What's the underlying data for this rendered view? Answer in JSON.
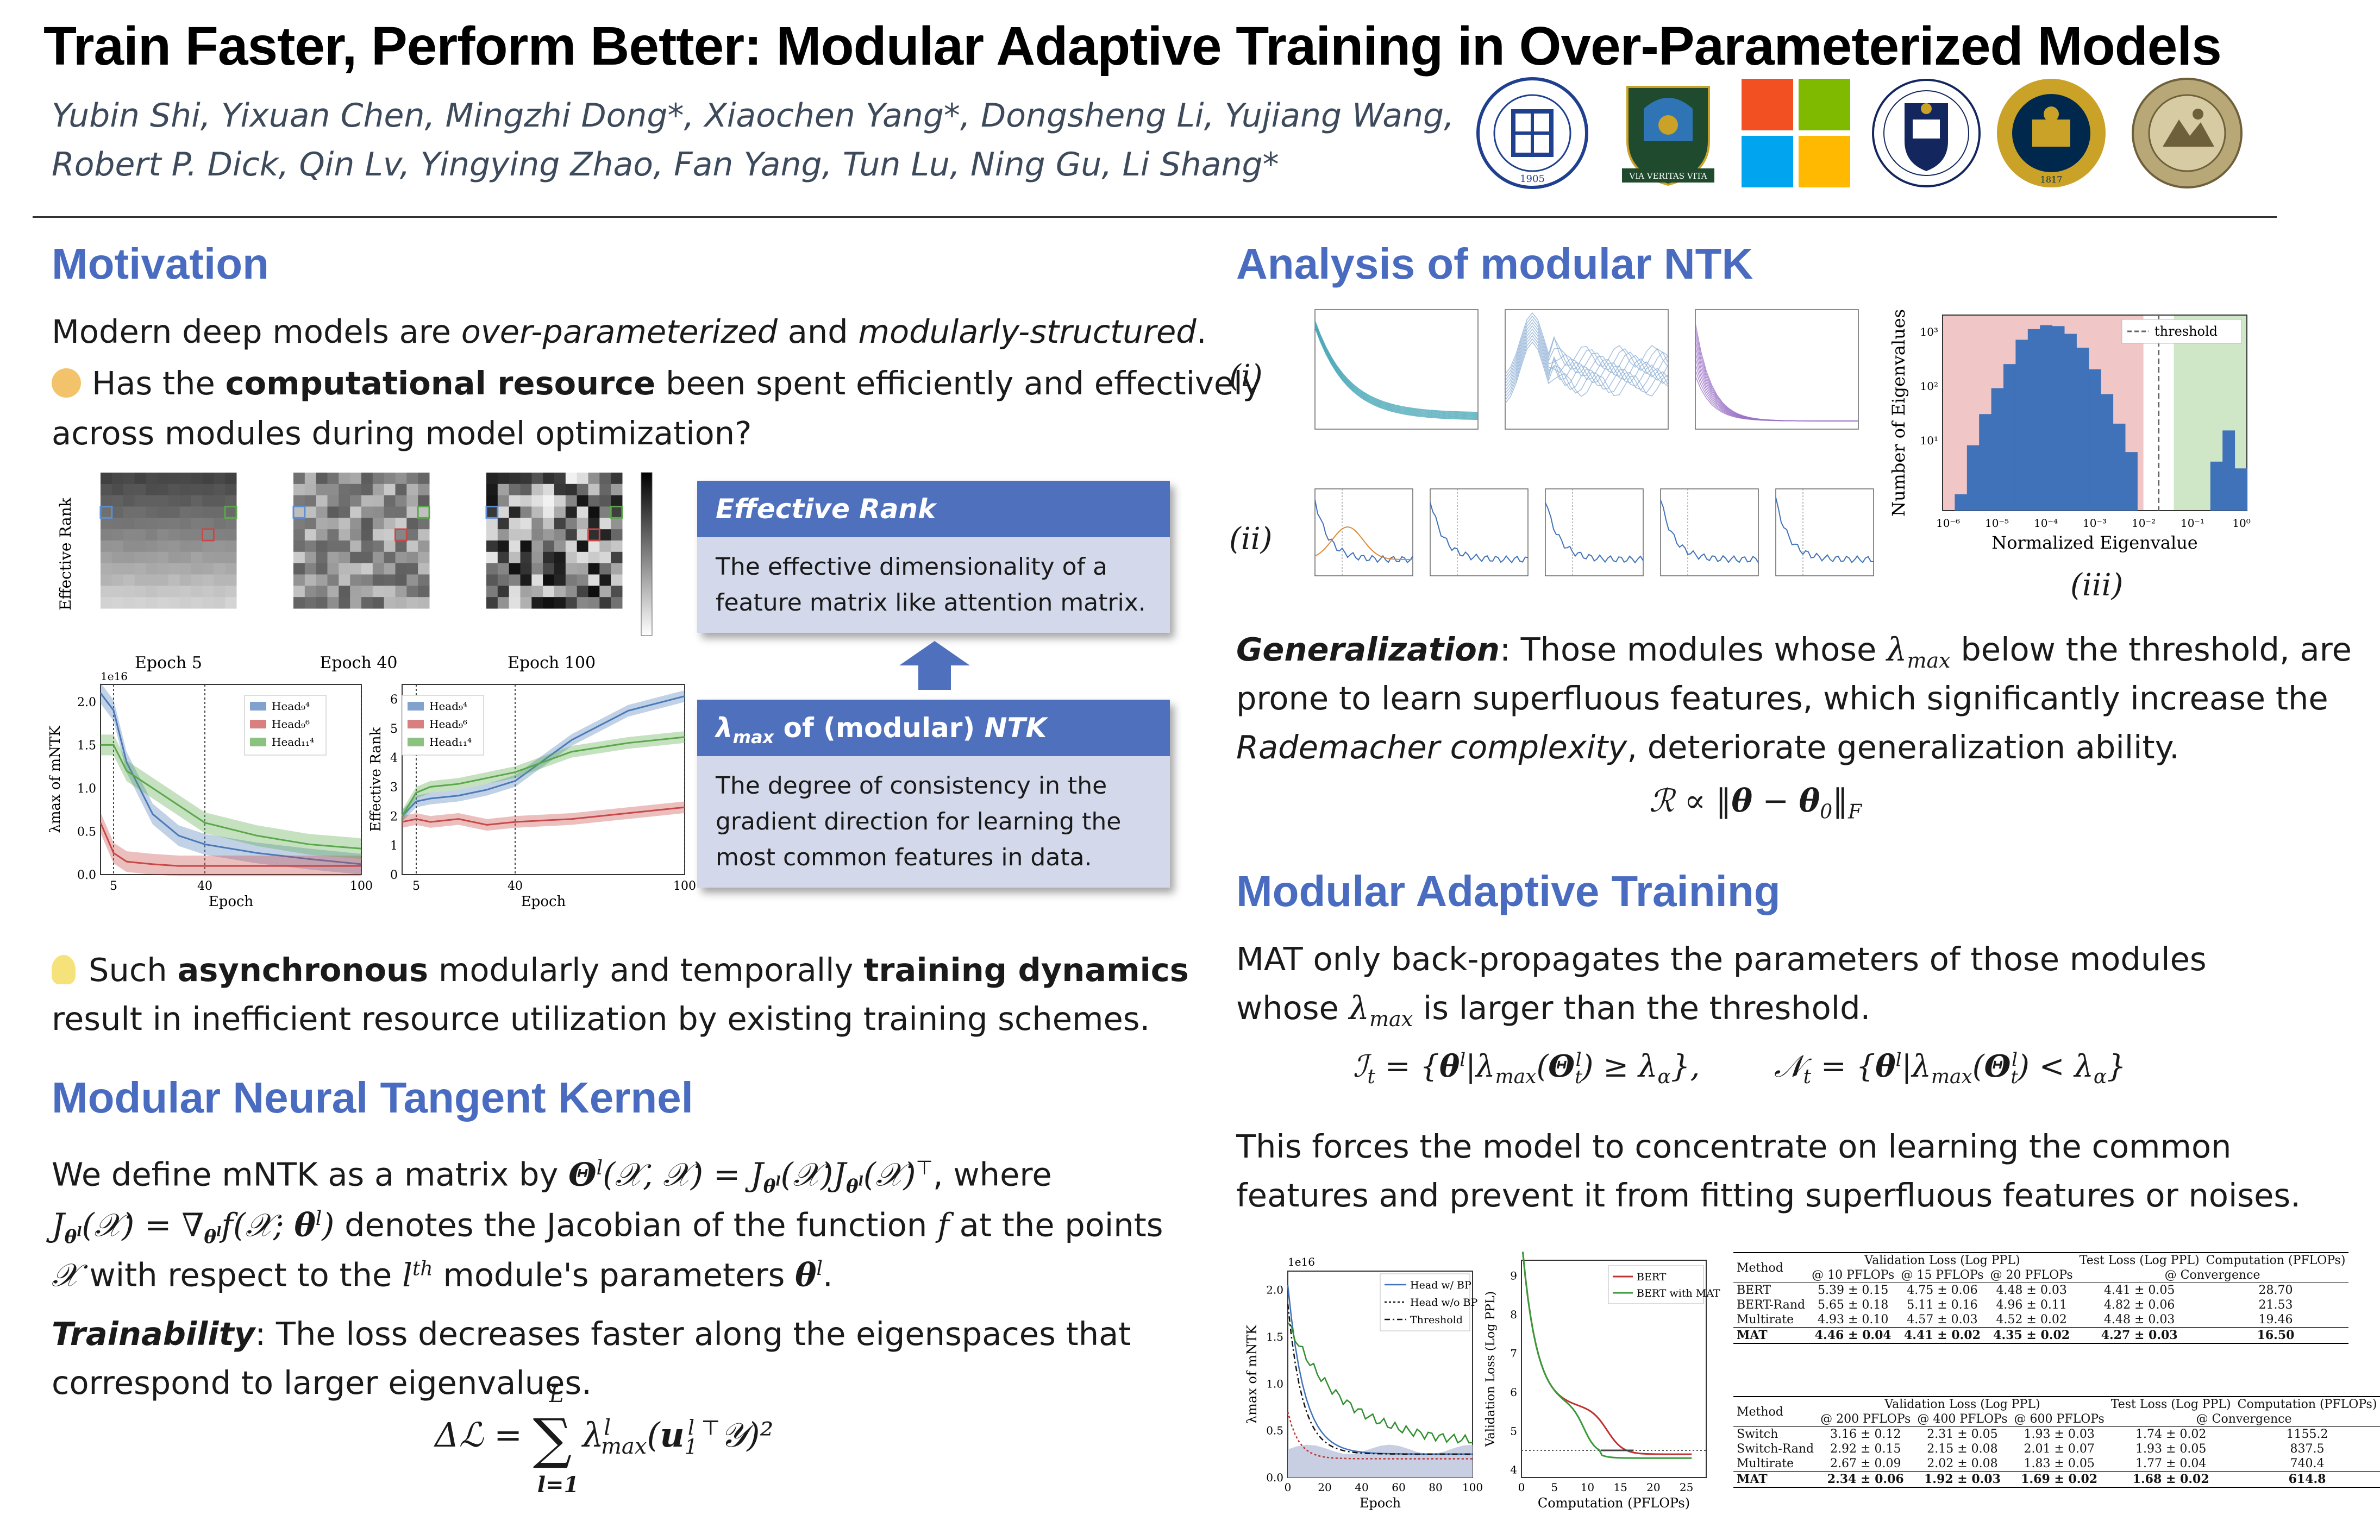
{
  "header": {
    "title": "Train Faster, Perform Better: Modular Adaptive Training in Over-Parameterized Models",
    "authors_line1": "Yubin Shi, Yixuan Chen, Mingzhi Dong*, Xiaochen Yang*, Dongsheng Li, Yujiang Wang,",
    "authors_line2": "Robert P. Dick, Qin Lv, Yingying Zhao, Fan Yang, Tun Lu, Ning Gu, Li Shang*",
    "logos": [
      {
        "name": "fudan-logo",
        "text": "FUDAN UNIVERSITY 1905",
        "color": "#1f3f8f"
      },
      {
        "name": "glasgow-logo",
        "text": "VIA VERITAS VITA",
        "color": "#1f4a2e"
      },
      {
        "name": "microsoft-logo",
        "text": "",
        "color": "#f25022"
      },
      {
        "name": "oxford-logo",
        "text": "",
        "color": "#13265e"
      },
      {
        "name": "michigan-logo",
        "text": "THE UNIVERSITY OF MICHIGAN 1817",
        "color": "#c9a227"
      },
      {
        "name": "colorado-logo",
        "text": "",
        "color": "#8a7a4e"
      }
    ]
  },
  "motivation": {
    "heading": "Motivation",
    "p1_a": "Modern deep models are ",
    "p1_b": "over-parameterized",
    "p1_c": " and ",
    "p1_d": "modularly-structured",
    "p1_e": ".",
    "p2_a": "Has the ",
    "p2_b": "computational resource",
    "p2_c": " been spent efficiently and effectively",
    "p2_d": "across modules during model optimization?",
    "heatmap_ylabel": "Effective Rank",
    "heatmap_labels": [
      "Epoch 5",
      "Epoch 40",
      "Epoch 100"
    ],
    "p3_a": "Such ",
    "p3_b": "asynchronous",
    "p3_c": " modularly and temporally ",
    "p3_d": "training dynamics",
    "p3_e": "result in inefficient resource utilization by existing training schemes."
  },
  "cards": {
    "effective_rank_title": "Effective Rank",
    "effective_rank_body": "The effective dimensionality of a feature matrix like attention matrix.",
    "lambda_title_a": "λ",
    "lambda_title_sub": "max",
    "lambda_title_b": " of (modular) ",
    "lambda_title_c": "NTK",
    "lambda_body": "The degree of consistency in the gradient direction for learning the most common features in data."
  },
  "mntk": {
    "heading": "Modular Neural Tangent Kernel",
    "p1": "We define mNTK as a matrix by Θˡ(𝒳, 𝒳) = J_θˡ(𝒳) J_θˡ(𝒳)ᵀ, where",
    "p2": "J_θˡ(𝒳) = ∇_θˡ f(𝒳; θˡ) denotes the Jacobian of the function f at the points",
    "p3": "𝒳 with respect to the lᵗʰ module's parameters θˡ.",
    "train_label": "Trainability",
    "train_text": ": The loss decreases faster along the eigenspaces that",
    "train_text2": "correspond to larger eigenvalues.",
    "equation": "ΔL = Σ λˡmax (u₁ˡᵀ 𝒴)²"
  },
  "analysis": {
    "heading": "Analysis of modular NTK",
    "roman": [
      "(i)",
      "(ii)",
      "(iii)"
    ],
    "gen_label": "Generalization",
    "gen_text_a": ": Those modules whose ",
    "gen_text_b": " below the threshold, are",
    "gen_text_c": "prone to learn superfluous features, which significantly increase the",
    "gen_text_d": "Rademacher complexity",
    "gen_text_e": ", deteriorate generalization ability.",
    "equation": "ℛ ∝ ‖θ − θ₀‖F"
  },
  "mat": {
    "heading": "Modular Adaptive Training",
    "p1": "MAT only back-propagates the parameters of those modules",
    "p2_a": "whose ",
    "p2_b": " is larger than the threshold.",
    "eq_left": "ℐt = {θˡ | λmax(Θtˡ) ≥ λα},",
    "eq_right": "𝒩t = {θˡ | λmax(Θtˡ) < λα}",
    "p3": "This forces the model to concentrate on learning the common",
    "p4": "features and prevent it from fitting superfluous features or noises."
  },
  "chart_data": [
    {
      "type": "line",
      "title": "",
      "xlabel": "Epoch",
      "ylabel": "λmax of mNTK",
      "scale_label": "1e16",
      "xlim": [
        0,
        100
      ],
      "ylim": [
        0,
        2.2
      ],
      "xticks": [
        "5",
        "40",
        "100"
      ],
      "yticks": [
        "0.0",
        "0.5",
        "1.0",
        "1.5",
        "2.0"
      ],
      "x": [
        0,
        5,
        10,
        20,
        30,
        40,
        60,
        80,
        100
      ],
      "series": [
        {
          "name": "Head₉⁴",
          "color": "#4c7ab8",
          "values": [
            2.1,
            1.9,
            1.3,
            0.7,
            0.45,
            0.35,
            0.25,
            0.18,
            0.12
          ]
        },
        {
          "name": "Head₉⁶",
          "color": "#c84848",
          "values": [
            0.6,
            0.25,
            0.15,
            0.12,
            0.1,
            0.1,
            0.1,
            0.1,
            0.1
          ]
        },
        {
          "name": "Head₁₁⁴",
          "color": "#5aa84a",
          "values": [
            1.5,
            1.5,
            1.2,
            1.0,
            0.8,
            0.6,
            0.45,
            0.35,
            0.3
          ]
        }
      ]
    },
    {
      "type": "line",
      "xlabel": "Epoch",
      "ylabel": "Effective Rank",
      "xlim": [
        0,
        100
      ],
      "ylim": [
        0,
        6.5
      ],
      "xticks": [
        "5",
        "40",
        "100"
      ],
      "yticks": [
        "0",
        "1",
        "2",
        "3",
        "4",
        "5",
        "6"
      ],
      "x": [
        0,
        5,
        10,
        20,
        30,
        40,
        60,
        80,
        100
      ],
      "series": [
        {
          "name": "Head₉⁴",
          "color": "#4c7ab8",
          "values": [
            2.0,
            2.5,
            2.6,
            2.7,
            2.9,
            3.2,
            4.6,
            5.6,
            6.1
          ]
        },
        {
          "name": "Head₉⁶",
          "color": "#c84848",
          "values": [
            1.8,
            1.9,
            1.8,
            1.9,
            1.7,
            1.8,
            1.9,
            2.1,
            2.3
          ]
        },
        {
          "name": "Head₁₁⁴",
          "color": "#5aa84a",
          "values": [
            2.0,
            2.8,
            3.0,
            3.1,
            3.3,
            3.5,
            4.2,
            4.5,
            4.7
          ]
        }
      ]
    },
    {
      "type": "bar",
      "xlabel": "Normalized Eigenvalue",
      "ylabel": "Number of Eigenvalues",
      "legend": "threshold",
      "xticks": [
        "10⁻⁶",
        "10⁻⁵",
        "10⁻⁴",
        "10⁻³",
        "10⁻²",
        "10⁻¹",
        "10⁰"
      ],
      "yticks": [
        "10¹",
        "10²",
        "10³"
      ],
      "values": [
        0,
        1,
        8,
        30,
        90,
        250,
        700,
        1100,
        1300,
        1250,
        900,
        500,
        200,
        70,
        20,
        6,
        0,
        0,
        0,
        0,
        0,
        0,
        4,
        15,
        3
      ]
    },
    {
      "type": "line",
      "xlabel": "Epoch",
      "ylabel": "λmax of mNTK",
      "scale_label": "1e16",
      "xlim": [
        0,
        100
      ],
      "ylim": [
        0,
        2.2
      ],
      "xticks": [
        "0",
        "20",
        "40",
        "60",
        "80",
        "100"
      ],
      "yticks": [
        "0.0",
        "0.5",
        "1.0",
        "1.5",
        "2.0"
      ],
      "legend": [
        "Head w/ BP",
        "Head w/o BP",
        "Threshold"
      ]
    },
    {
      "type": "line",
      "xlabel": "Computation (PFLOPs)",
      "ylabel": "Validation Loss (Log PPL)",
      "xticks": [
        "0",
        "5",
        "10",
        "15",
        "20",
        "25"
      ],
      "yticks": [
        "4",
        "5",
        "6",
        "7",
        "8",
        "9"
      ],
      "series": [
        {
          "name": "BERT",
          "color": "#c03030"
        },
        {
          "name": "BERT with MAT",
          "color": "#3a9a3a"
        }
      ]
    }
  ],
  "table1": {
    "head1": [
      "Method",
      "Validation Loss (Log PPL)",
      "Test Loss (Log PPL)",
      "Computation (PFLOPs)"
    ],
    "head2": [
      "@ 10 PFLOPs",
      "@ 15 PFLOPs",
      "@ 20 PFLOPs",
      "@ Convergence"
    ],
    "rows": [
      [
        "BERT",
        "5.39 ± 0.15",
        "4.75 ± 0.06",
        "4.48 ± 0.03",
        "4.41 ± 0.05",
        "28.70"
      ],
      [
        "BERT-Rand",
        "5.65 ± 0.18",
        "5.11 ± 0.16",
        "4.96 ± 0.11",
        "4.82 ± 0.06",
        "21.53"
      ],
      [
        "Multirate",
        "4.93 ± 0.10",
        "4.57 ± 0.03",
        "4.52 ± 0.02",
        "4.48 ± 0.03",
        "19.46"
      ],
      [
        "MAT",
        "4.46 ± 0.04",
        "4.41 ± 0.02",
        "4.35 ± 0.02",
        "4.27 ± 0.03",
        "16.50"
      ]
    ]
  },
  "table2": {
    "head1": [
      "Method",
      "Validation Loss (Log PPL)",
      "Test Loss (Log PPL)",
      "Computation (PFLOPs)"
    ],
    "head2": [
      "@ 200 PFLOPs",
      "@ 400 PFLOPs",
      "@ 600 PFLOPs",
      "@ Convergence"
    ],
    "rows": [
      [
        "Switch",
        "3.16 ± 0.12",
        "2.31 ± 0.05",
        "1.93 ± 0.03",
        "1.74 ± 0.02",
        "1155.2"
      ],
      [
        "Switch-Rand",
        "2.92 ± 0.15",
        "2.15 ± 0.08",
        "2.01 ± 0.07",
        "1.93 ± 0.05",
        "837.5"
      ],
      [
        "Multirate",
        "2.67 ± 0.09",
        "2.02 ± 0.08",
        "1.83 ± 0.05",
        "1.77 ± 0.04",
        "740.4"
      ],
      [
        "MAT",
        "2.34 ± 0.06",
        "1.92 ± 0.03",
        "1.69 ± 0.02",
        "1.68 ± 0.02",
        "614.8"
      ]
    ]
  }
}
